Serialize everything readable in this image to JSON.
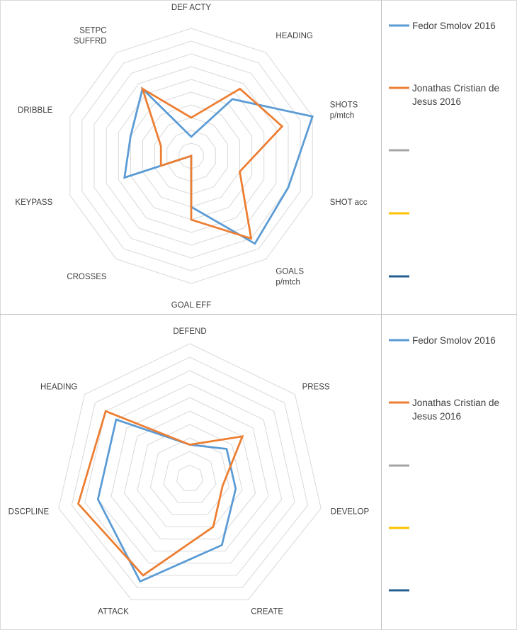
{
  "chart_data": [
    {
      "type": "radar",
      "axes": [
        "DEF ACTY",
        "HEADING",
        "SHOTS\np/mtch",
        "SHOT acc",
        "GOALS\np/mtch",
        "GOAL EFF",
        "CROSSES",
        "KEYPASS",
        "DRIBBLE",
        "SETPC\nSUFFRD"
      ],
      "rlim": [
        0,
        10
      ],
      "rings": 10,
      "series": [
        {
          "name": "Fedor Smolov 2016",
          "color": "#5B9BD5",
          "values": [
            1.5,
            5.5,
            10,
            8,
            8.5,
            4,
            0,
            5.5,
            5,
            6.5
          ]
        },
        {
          "name": "Jonathas Cristian de\nJesus 2016",
          "color": "#ED7D31",
          "values": [
            3,
            6.5,
            7.5,
            4,
            8,
            5,
            0,
            2.5,
            2.5,
            6.5
          ]
        }
      ],
      "legend": [
        {
          "label": "Fedor Smolov 2016",
          "color": "#5B9BD5"
        },
        {
          "label": "Jonathas Cristian de\nJesus 2016",
          "color": "#ED7D31"
        },
        {
          "label": "",
          "color": "#A5A5A5"
        },
        {
          "label": "",
          "color": "#FFC000"
        },
        {
          "label": "",
          "color": "#255E91"
        }
      ]
    },
    {
      "type": "radar",
      "axes": [
        "DEFEND",
        "PRESS",
        "DEVELOP",
        "CREATE",
        "ATTACK",
        "DSCPLINE",
        "HEADING"
      ],
      "rlim": [
        0,
        10
      ],
      "rings": 10,
      "series": [
        {
          "name": "Fedor Smolov 2016",
          "color": "#5B9BD5",
          "values": [
            2.5,
            3.5,
            3.5,
            5.5,
            8.5,
            7,
            7
          ]
        },
        {
          "name": "Jonathas Cristian de\nJesus 2016",
          "color": "#ED7D31",
          "values": [
            2.5,
            5,
            2.5,
            4,
            8,
            8.5,
            8
          ]
        }
      ],
      "legend": [
        {
          "label": "Fedor Smolov 2016",
          "color": "#5B9BD5"
        },
        {
          "label": "Jonathas Cristian de\nJesus 2016",
          "color": "#ED7D31"
        },
        {
          "label": "",
          "color": "#A5A5A5"
        },
        {
          "label": "",
          "color": "#FFC000"
        },
        {
          "label": "",
          "color": "#255E91"
        }
      ]
    }
  ]
}
